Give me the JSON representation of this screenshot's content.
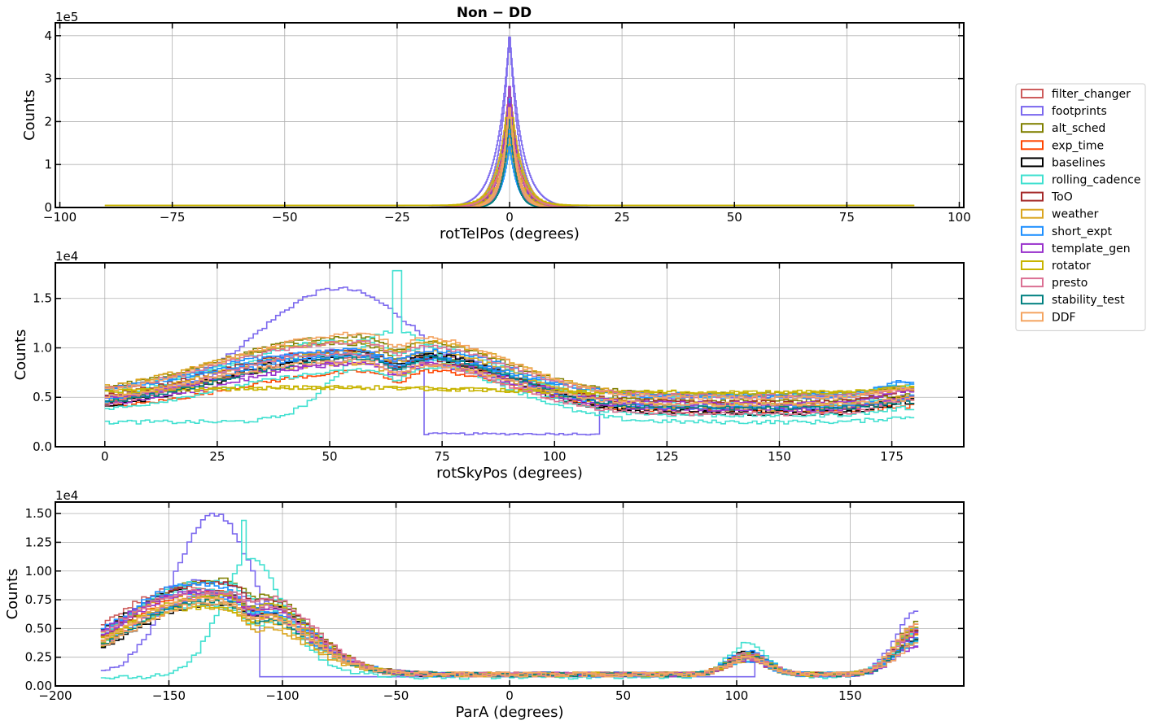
{
  "chart_data": [
    {
      "type": "histogram",
      "title": "Non − DD",
      "xlabel": "rotTelPos (degrees)",
      "ylabel": "Counts",
      "offset_label": "1e5",
      "xlim": [
        -101,
        101
      ],
      "ylim": [
        0,
        4.3
      ],
      "xticks": [
        -100,
        -75,
        -50,
        -25,
        0,
        25,
        50,
        75,
        100
      ],
      "xtick_labels": [
        "−100",
        "−75",
        "−50",
        "−25",
        "0",
        "25",
        "50",
        "75",
        "100"
      ],
      "yticks": [
        0,
        1,
        2,
        3,
        4
      ],
      "ytick_labels": [
        "0",
        "1",
        "2",
        "3",
        "4"
      ],
      "grid": true
    },
    {
      "type": "histogram",
      "xlabel": "rotSkyPos (degrees)",
      "ylabel": "Counts",
      "offset_label": "1e4",
      "xlim": [
        -11,
        191
      ],
      "ylim": [
        0,
        1.86
      ],
      "xticks": [
        0,
        25,
        50,
        75,
        100,
        125,
        150,
        175
      ],
      "xtick_labels": [
        "0",
        "25",
        "50",
        "75",
        "100",
        "125",
        "150",
        "175"
      ],
      "yticks": [
        0,
        0.5,
        1.0,
        1.5
      ],
      "ytick_labels": [
        "0.0",
        "0.5",
        "1.0",
        "1.5"
      ],
      "grid": true
    },
    {
      "type": "histogram",
      "xlabel": "ParA (degrees)",
      "ylabel": "Counts",
      "offset_label": "1e4",
      "xlim": [
        -200,
        200
      ],
      "ylim": [
        0,
        1.6
      ],
      "xticks": [
        -200,
        -150,
        -100,
        -50,
        0,
        50,
        100,
        150
      ],
      "xtick_labels": [
        "−200",
        "−150",
        "−100",
        "−50",
        "0",
        "50",
        "100",
        "150"
      ],
      "yticks": [
        0,
        0.25,
        0.5,
        0.75,
        1.0,
        1.25,
        1.5
      ],
      "ytick_labels": [
        "0.00",
        "0.25",
        "0.50",
        "0.75",
        "1.00",
        "1.25",
        "1.50"
      ],
      "grid": true
    }
  ],
  "legend": {
    "placement": "right",
    "entries": [
      {
        "name": "filter_changer",
        "color": "#cd5c5c"
      },
      {
        "name": "footprints",
        "color": "#7b68ee"
      },
      {
        "name": "alt_sched",
        "color": "#808000"
      },
      {
        "name": "exp_time",
        "color": "#ff4500"
      },
      {
        "name": "baselines",
        "color": "#000000"
      },
      {
        "name": "rolling_cadence",
        "color": "#40e0d0"
      },
      {
        "name": "ToO",
        "color": "#a52a2a"
      },
      {
        "name": "weather",
        "color": "#daa520"
      },
      {
        "name": "short_expt",
        "color": "#1e90ff"
      },
      {
        "name": "template_gen",
        "color": "#9932cc"
      },
      {
        "name": "rotator",
        "color": "#c8b400"
      },
      {
        "name": "presto",
        "color": "#db7093"
      },
      {
        "name": "stability_test",
        "color": "#008080"
      },
      {
        "name": "DDF",
        "color": "#f4a460"
      }
    ]
  }
}
